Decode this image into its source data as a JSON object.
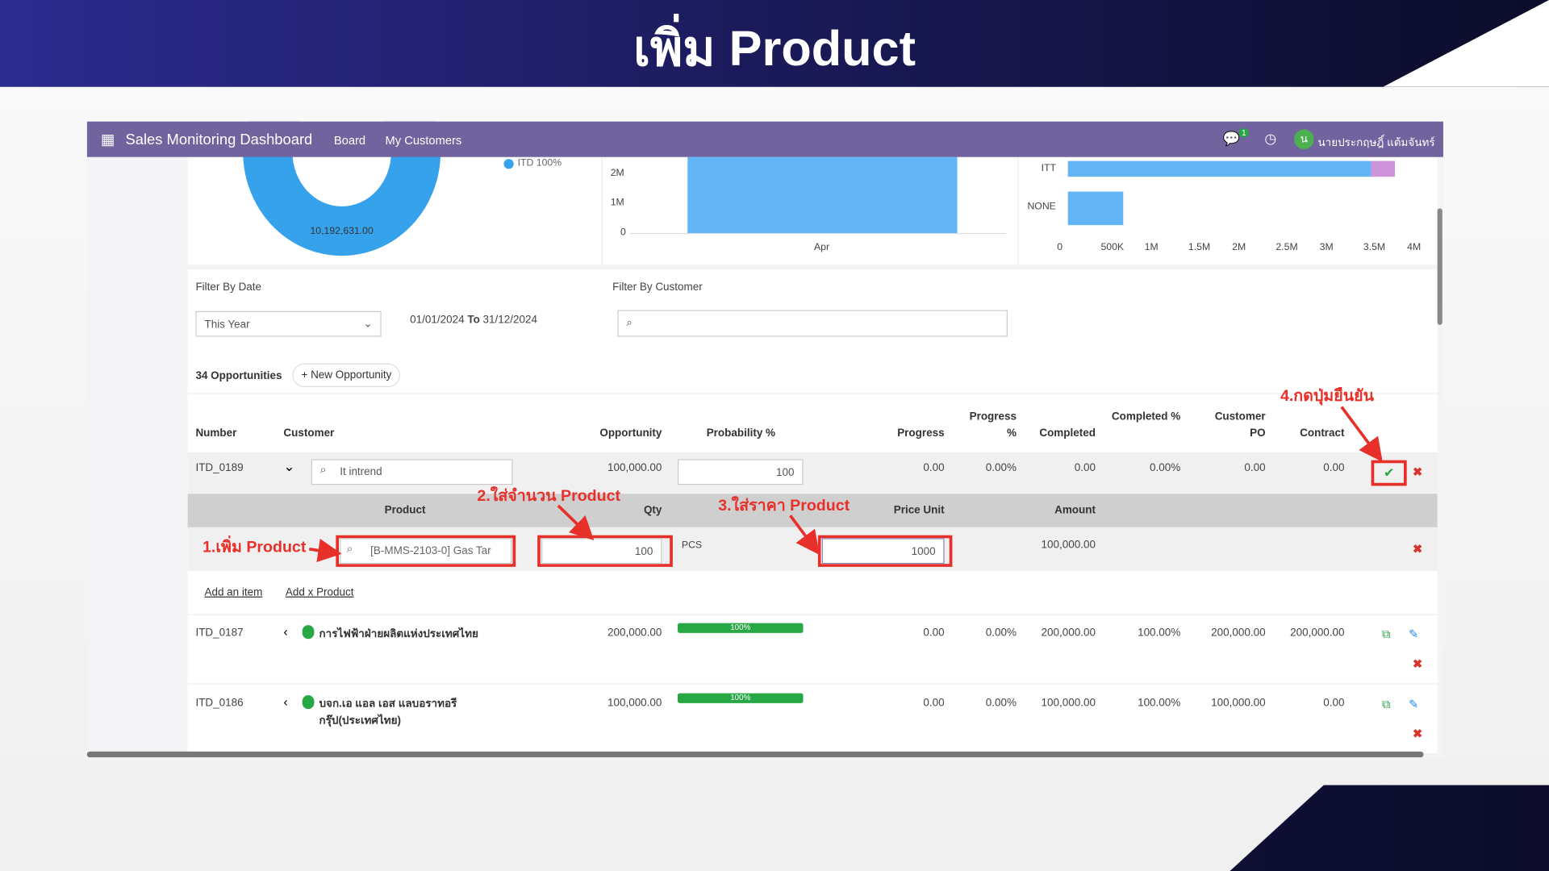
{
  "banner": {
    "title": "เพิ่ม Product"
  },
  "nav": {
    "app_title": "Sales Monitoring Dashboard",
    "menu": [
      "Board",
      "My Customers"
    ],
    "chat_badge": "1",
    "avatar_letter": "น",
    "user_name": "นายประกฤษฎิ์ แต้มจันทร์",
    "color": "#71639e"
  },
  "charts": {
    "donut": {
      "center_value": "10,192,631.00",
      "legend": "ITD 100%"
    },
    "monthly_bar": {
      "type": "bar",
      "categories": [
        "Apr"
      ],
      "y_ticks": [
        "0",
        "1M",
        "2M"
      ],
      "values": [
        2500000
      ]
    },
    "customer_bar": {
      "type": "bar",
      "categories": [
        "ITT",
        "NONE"
      ],
      "x_ticks": [
        "0",
        "500K",
        "1M",
        "1.5M",
        "2M",
        "2.5M",
        "3M",
        "3.5M",
        "4M"
      ],
      "series_values": [
        [
          3450000,
          280000
        ],
        [
          620000,
          0
        ]
      ]
    }
  },
  "filters": {
    "date_label": "Filter By Date",
    "date_select": "This Year",
    "date_range_from": "01/01/2024",
    "to_label": "To",
    "date_range_to": "31/12/2024",
    "customer_label": "Filter By Customer",
    "customer_value": ""
  },
  "opportunities": {
    "count_label": "34 Opportunities",
    "new_button": "+ New Opportunity"
  },
  "table": {
    "headers": [
      "Number",
      "Customer",
      "Opportunity",
      "Probability %",
      "Progress",
      "Progress %",
      "Completed",
      "Completed %",
      "Customer PO",
      "Contract"
    ],
    "edit_row": {
      "number": "ITD_0189",
      "customer": "It intrend",
      "opportunity": "100,000.00",
      "probability": "100",
      "progress": "0.00",
      "progress_pct": "0.00%",
      "completed": "0.00",
      "completed_pct": "0.00%",
      "customer_po": "0.00",
      "contract": "0.00"
    },
    "line_headers": [
      "Product",
      "Qty",
      "Price Unit",
      "Amount"
    ],
    "line": {
      "product": "[B-MMS-2103-0] Gas Tar",
      "qty": "100",
      "uom": "PCS",
      "price_unit": "1000",
      "amount": "100,000.00"
    },
    "add_links": [
      "Add an item",
      "Add x Product"
    ],
    "rows": [
      {
        "number": "ITD_0187",
        "customer": "การไฟฟ้าฝ่ายผลิตแห่งประเทศไทย",
        "opportunity": "200,000.00",
        "probability": "100%",
        "progress": "0.00",
        "progress_pct": "0.00%",
        "completed": "200,000.00",
        "completed_pct": "100.00%",
        "customer_po": "200,000.00",
        "contract": "200,000.00"
      },
      {
        "number": "ITD_0186",
        "customer": "บจก.เอ แอล เอส แลบอราทอรี",
        "customer_line2": "กรุ๊ป(ประเทศไทย)",
        "opportunity": "100,000.00",
        "probability": "100%",
        "progress": "0.00",
        "progress_pct": "0.00%",
        "completed": "100,000.00",
        "completed_pct": "100.00%",
        "customer_po": "100,000.00",
        "contract": "0.00"
      }
    ]
  },
  "annotations": {
    "step1": "1.เพิ่ม Product",
    "step2": "2.ใส่จำนวน Product",
    "step3": "3.ใส่ราคา Product",
    "step4": "4.กดปุ่มยืนยัน"
  }
}
